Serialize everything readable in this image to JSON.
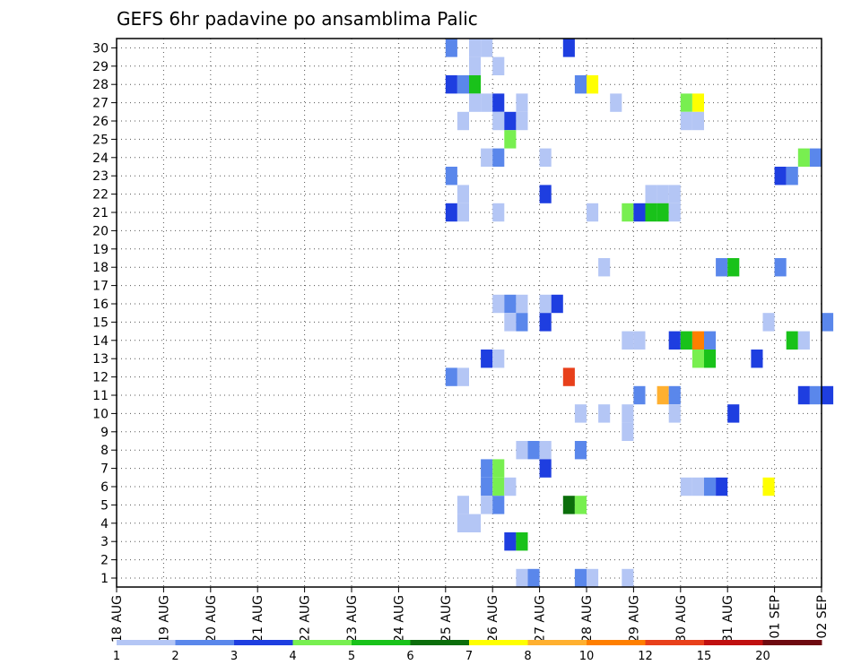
{
  "chart_data": {
    "type": "heatmap",
    "title": "GEFS 6hr padavine po ansamblima Palic",
    "xlabel": "",
    "ylabel": "",
    "grid": true,
    "legend": "bottom",
    "x_start": "18 AUG 00Z",
    "x_end": "02 SEP 00Z",
    "x_tick_labels": [
      "18 AUG",
      "19 AUG",
      "20 AUG",
      "21 AUG",
      "22 AUG",
      "23 AUG",
      "24 AUG",
      "25 AUG",
      "26 AUG",
      "27 AUG",
      "28 AUG",
      "29 AUG",
      "30 AUG",
      "31 AUG",
      "01 SEP",
      "02 SEP"
    ],
    "y_tick_labels": [
      "1",
      "2",
      "3",
      "4",
      "5",
      "6",
      "7",
      "8",
      "9",
      "10",
      "11",
      "12",
      "13",
      "14",
      "15",
      "16",
      "17",
      "18",
      "19",
      "20",
      "21",
      "22",
      "23",
      "24",
      "25",
      "26",
      "27",
      "28",
      "29",
      "30"
    ],
    "levels": [
      1,
      2,
      3,
      4,
      5,
      6,
      7,
      8,
      10,
      12,
      15,
      20
    ],
    "level_colors": [
      "#b4c6f5",
      "#5a87eb",
      "#1e3ee0",
      "#78ef50",
      "#19c21a",
      "#0b6e0b",
      "#ffff00",
      "#ffb030",
      "#ff7f00",
      "#e8401b",
      "#c01010",
      "#6e0a10"
    ],
    "cells": [
      {
        "t": "25 AUG 00Z",
        "member": 30,
        "bin": 1
      },
      {
        "t": "25 AUG 12Z",
        "member": 30,
        "bin": 0
      },
      {
        "t": "25 AUG 18Z",
        "member": 30,
        "bin": 0
      },
      {
        "t": "27 AUG 12Z",
        "member": 30,
        "bin": 2
      },
      {
        "t": "25 AUG 12Z",
        "member": 29,
        "bin": 0
      },
      {
        "t": "26 AUG 00Z",
        "member": 29,
        "bin": 0
      },
      {
        "t": "25 AUG 00Z",
        "member": 28,
        "bin": 2
      },
      {
        "t": "25 AUG 06Z",
        "member": 28,
        "bin": 1
      },
      {
        "t": "25 AUG 12Z",
        "member": 28,
        "bin": 4
      },
      {
        "t": "27 AUG 18Z",
        "member": 28,
        "bin": 1
      },
      {
        "t": "28 AUG 00Z",
        "member": 28,
        "bin": 6
      },
      {
        "t": "25 AUG 12Z",
        "member": 27,
        "bin": 0
      },
      {
        "t": "25 AUG 18Z",
        "member": 27,
        "bin": 0
      },
      {
        "t": "26 AUG 00Z",
        "member": 27,
        "bin": 2
      },
      {
        "t": "26 AUG 12Z",
        "member": 27,
        "bin": 0
      },
      {
        "t": "28 AUG 12Z",
        "member": 27,
        "bin": 0
      },
      {
        "t": "30 AUG 00Z",
        "member": 27,
        "bin": 3
      },
      {
        "t": "30 AUG 06Z",
        "member": 27,
        "bin": 6
      },
      {
        "t": "25 AUG 06Z",
        "member": 26,
        "bin": 0
      },
      {
        "t": "26 AUG 00Z",
        "member": 26,
        "bin": 0
      },
      {
        "t": "26 AUG 06Z",
        "member": 26,
        "bin": 2
      },
      {
        "t": "26 AUG 12Z",
        "member": 26,
        "bin": 0
      },
      {
        "t": "30 AUG 00Z",
        "member": 26,
        "bin": 0
      },
      {
        "t": "30 AUG 06Z",
        "member": 26,
        "bin": 0
      },
      {
        "t": "26 AUG 06Z",
        "member": 25,
        "bin": 3
      },
      {
        "t": "25 AUG 18Z",
        "member": 24,
        "bin": 0
      },
      {
        "t": "26 AUG 00Z",
        "member": 24,
        "bin": 1
      },
      {
        "t": "27 AUG 00Z",
        "member": 24,
        "bin": 0
      },
      {
        "t": "01 SEP 12Z",
        "member": 24,
        "bin": 3
      },
      {
        "t": "01 SEP 18Z",
        "member": 24,
        "bin": 1
      },
      {
        "t": "25 AUG 00Z",
        "member": 23,
        "bin": 1
      },
      {
        "t": "01 SEP 00Z",
        "member": 23,
        "bin": 2
      },
      {
        "t": "01 SEP 06Z",
        "member": 23,
        "bin": 1
      },
      {
        "t": "25 AUG 06Z",
        "member": 22,
        "bin": 0
      },
      {
        "t": "27 AUG 00Z",
        "member": 22,
        "bin": 2
      },
      {
        "t": "29 AUG 06Z",
        "member": 22,
        "bin": 0
      },
      {
        "t": "29 AUG 12Z",
        "member": 22,
        "bin": 0
      },
      {
        "t": "29 AUG 18Z",
        "member": 22,
        "bin": 0
      },
      {
        "t": "25 AUG 00Z",
        "member": 21,
        "bin": 2
      },
      {
        "t": "25 AUG 06Z",
        "member": 21,
        "bin": 0
      },
      {
        "t": "26 AUG 00Z",
        "member": 21,
        "bin": 0
      },
      {
        "t": "28 AUG 00Z",
        "member": 21,
        "bin": 0
      },
      {
        "t": "28 AUG 18Z",
        "member": 21,
        "bin": 3
      },
      {
        "t": "29 AUG 00Z",
        "member": 21,
        "bin": 2
      },
      {
        "t": "29 AUG 06Z",
        "member": 21,
        "bin": 4
      },
      {
        "t": "29 AUG 12Z",
        "member": 21,
        "bin": 4
      },
      {
        "t": "29 AUG 18Z",
        "member": 21,
        "bin": 0
      },
      {
        "t": "28 AUG 06Z",
        "member": 18,
        "bin": 0
      },
      {
        "t": "30 AUG 18Z",
        "member": 18,
        "bin": 1
      },
      {
        "t": "31 AUG 00Z",
        "member": 18,
        "bin": 4
      },
      {
        "t": "01 SEP 00Z",
        "member": 18,
        "bin": 1
      },
      {
        "t": "26 AUG 00Z",
        "member": 16,
        "bin": 0
      },
      {
        "t": "26 AUG 06Z",
        "member": 16,
        "bin": 1
      },
      {
        "t": "26 AUG 12Z",
        "member": 16,
        "bin": 0
      },
      {
        "t": "27 AUG 00Z",
        "member": 16,
        "bin": 0
      },
      {
        "t": "27 AUG 06Z",
        "member": 16,
        "bin": 2
      },
      {
        "t": "26 AUG 06Z",
        "member": 15,
        "bin": 0
      },
      {
        "t": "26 AUG 12Z",
        "member": 15,
        "bin": 1
      },
      {
        "t": "27 AUG 00Z",
        "member": 15,
        "bin": 2
      },
      {
        "t": "31 AUG 18Z",
        "member": 15,
        "bin": 0
      },
      {
        "t": "02 SEP 00Z",
        "member": 15,
        "bin": 1
      },
      {
        "t": "28 AUG 18Z",
        "member": 14,
        "bin": 0
      },
      {
        "t": "29 AUG 00Z",
        "member": 14,
        "bin": 0
      },
      {
        "t": "29 AUG 18Z",
        "member": 14,
        "bin": 2
      },
      {
        "t": "30 AUG 00Z",
        "member": 14,
        "bin": 4
      },
      {
        "t": "30 AUG 06Z",
        "member": 14,
        "bin": 8
      },
      {
        "t": "30 AUG 12Z",
        "member": 14,
        "bin": 1
      },
      {
        "t": "01 SEP 06Z",
        "member": 14,
        "bin": 4
      },
      {
        "t": "01 SEP 12Z",
        "member": 14,
        "bin": 0
      },
      {
        "t": "25 AUG 18Z",
        "member": 13,
        "bin": 2
      },
      {
        "t": "26 AUG 00Z",
        "member": 13,
        "bin": 0
      },
      {
        "t": "30 AUG 06Z",
        "member": 13,
        "bin": 3
      },
      {
        "t": "30 AUG 12Z",
        "member": 13,
        "bin": 4
      },
      {
        "t": "31 AUG 12Z",
        "member": 13,
        "bin": 2
      },
      {
        "t": "25 AUG 00Z",
        "member": 12,
        "bin": 1
      },
      {
        "t": "25 AUG 06Z",
        "member": 12,
        "bin": 0
      },
      {
        "t": "27 AUG 12Z",
        "member": 12,
        "bin": 9
      },
      {
        "t": "29 AUG 00Z",
        "member": 11,
        "bin": 1
      },
      {
        "t": "29 AUG 12Z",
        "member": 11,
        "bin": 7
      },
      {
        "t": "29 AUG 18Z",
        "member": 11,
        "bin": 1
      },
      {
        "t": "01 SEP 12Z",
        "member": 11,
        "bin": 2
      },
      {
        "t": "01 SEP 18Z",
        "member": 11,
        "bin": 1
      },
      {
        "t": "02 SEP 00Z",
        "member": 11,
        "bin": 2
      },
      {
        "t": "27 AUG 18Z",
        "member": 10,
        "bin": 0
      },
      {
        "t": "28 AUG 06Z",
        "member": 10,
        "bin": 0
      },
      {
        "t": "28 AUG 18Z",
        "member": 10,
        "bin": 0
      },
      {
        "t": "29 AUG 18Z",
        "member": 10,
        "bin": 0
      },
      {
        "t": "31 AUG 00Z",
        "member": 10,
        "bin": 2
      },
      {
        "t": "28 AUG 18Z",
        "member": 9,
        "bin": 0
      },
      {
        "t": "26 AUG 12Z",
        "member": 8,
        "bin": 0
      },
      {
        "t": "26 AUG 18Z",
        "member": 8,
        "bin": 1
      },
      {
        "t": "27 AUG 00Z",
        "member": 8,
        "bin": 0
      },
      {
        "t": "27 AUG 18Z",
        "member": 8,
        "bin": 1
      },
      {
        "t": "25 AUG 18Z",
        "member": 7,
        "bin": 1
      },
      {
        "t": "26 AUG 00Z",
        "member": 7,
        "bin": 3
      },
      {
        "t": "27 AUG 00Z",
        "member": 7,
        "bin": 2
      },
      {
        "t": "25 AUG 18Z",
        "member": 6,
        "bin": 1
      },
      {
        "t": "26 AUG 00Z",
        "member": 6,
        "bin": 3
      },
      {
        "t": "26 AUG 06Z",
        "member": 6,
        "bin": 0
      },
      {
        "t": "30 AUG 00Z",
        "member": 6,
        "bin": 0
      },
      {
        "t": "30 AUG 06Z",
        "member": 6,
        "bin": 0
      },
      {
        "t": "30 AUG 12Z",
        "member": 6,
        "bin": 1
      },
      {
        "t": "30 AUG 18Z",
        "member": 6,
        "bin": 2
      },
      {
        "t": "31 AUG 18Z",
        "member": 6,
        "bin": 6
      },
      {
        "t": "25 AUG 06Z",
        "member": 5,
        "bin": 0
      },
      {
        "t": "25 AUG 18Z",
        "member": 5,
        "bin": 0
      },
      {
        "t": "26 AUG 00Z",
        "member": 5,
        "bin": 1
      },
      {
        "t": "27 AUG 12Z",
        "member": 5,
        "bin": 5
      },
      {
        "t": "27 AUG 18Z",
        "member": 5,
        "bin": 3
      },
      {
        "t": "25 AUG 06Z",
        "member": 4,
        "bin": 0
      },
      {
        "t": "25 AUG 12Z",
        "member": 4,
        "bin": 0
      },
      {
        "t": "26 AUG 06Z",
        "member": 3,
        "bin": 2
      },
      {
        "t": "26 AUG 12Z",
        "member": 3,
        "bin": 4
      },
      {
        "t": "26 AUG 12Z",
        "member": 1,
        "bin": 0
      },
      {
        "t": "26 AUG 18Z",
        "member": 1,
        "bin": 1
      },
      {
        "t": "27 AUG 18Z",
        "member": 1,
        "bin": 1
      },
      {
        "t": "28 AUG 00Z",
        "member": 1,
        "bin": 0
      },
      {
        "t": "28 AUG 18Z",
        "member": 1,
        "bin": 0
      }
    ]
  }
}
